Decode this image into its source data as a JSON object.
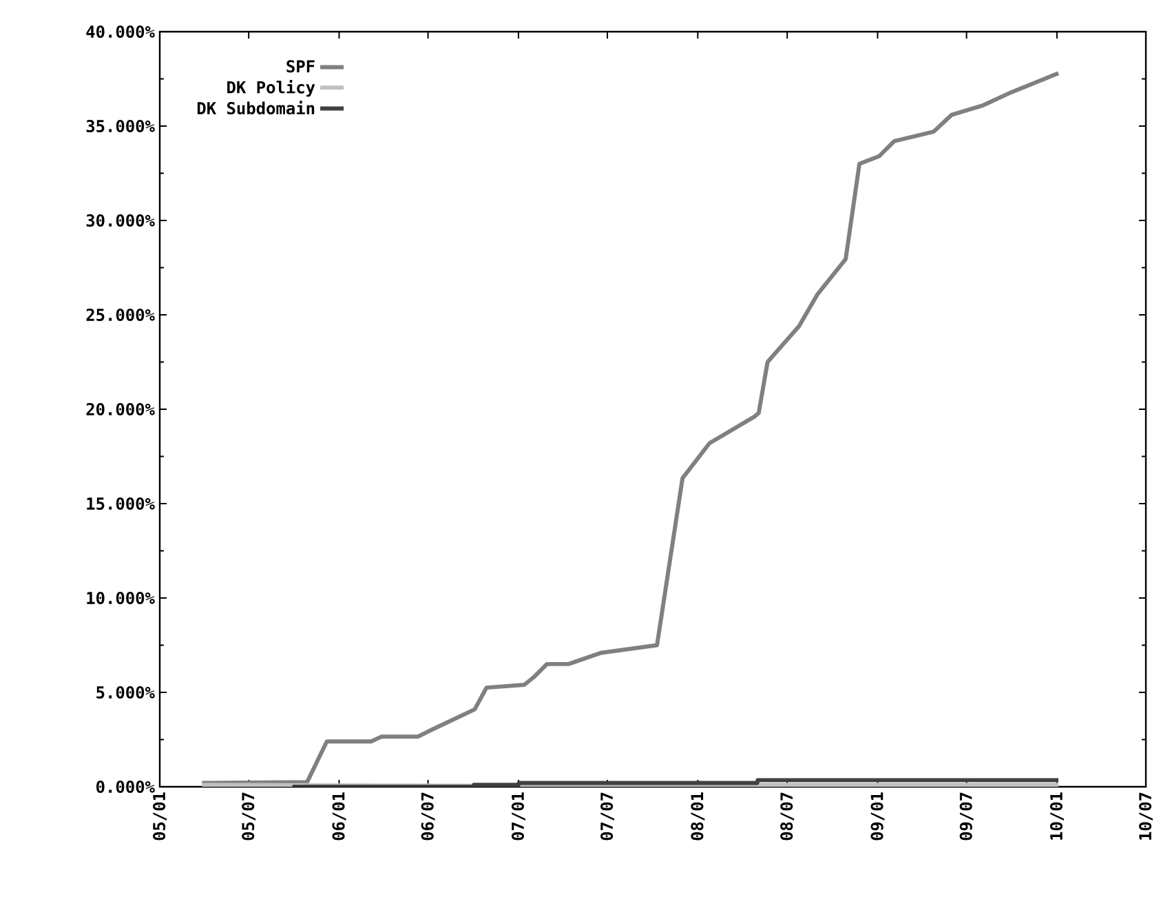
{
  "chart_data": {
    "type": "line",
    "series": [
      {
        "name": "SPF",
        "color": "#808080",
        "x": [
          "2005-03-28",
          "2005-10-28",
          "2005-12-07",
          "2006-03-07",
          "2006-03-28",
          "2006-06-10",
          "2006-07-07",
          "2006-10-04",
          "2006-10-28",
          "2007-01-13",
          "2007-02-01",
          "2007-02-28",
          "2007-04-13",
          "2007-06-19",
          "2007-10-10",
          "2007-12-01",
          "2008-01-25",
          "2008-04-25",
          "2008-05-04",
          "2008-05-22",
          "2008-07-25",
          "2008-09-01",
          "2008-10-28",
          "2008-11-25",
          "2009-01-04",
          "2009-02-04",
          "2009-04-25",
          "2009-06-01",
          "2009-08-04",
          "2009-10-01",
          "2010-01-04"
        ],
        "values": [
          0.2,
          0.25,
          2.4,
          2.4,
          2.65,
          2.65,
          3.0,
          4.1,
          5.25,
          5.4,
          5.8,
          6.5,
          6.5,
          7.1,
          7.5,
          16.35,
          18.2,
          19.6,
          19.8,
          22.5,
          24.4,
          26.1,
          27.95,
          33.0,
          33.4,
          34.2,
          34.7,
          35.6,
          36.1,
          36.8,
          37.8
        ]
      },
      {
        "name": "DK Policy",
        "color": "#c0c0c0",
        "x": [
          "2005-03-28",
          "2006-10-01",
          "2008-05-01",
          "2010-01-04"
        ],
        "values": [
          0.1,
          0.05,
          0.1,
          0.1
        ]
      },
      {
        "name": "DK Subdomain",
        "color": "#404040",
        "x": [
          "2005-09-28",
          "2006-10-01",
          "2006-10-02",
          "2007-01-01",
          "2007-01-02",
          "2008-05-01",
          "2008-05-02",
          "2010-01-04"
        ],
        "values": [
          0.0,
          0.0,
          0.1,
          0.1,
          0.2,
          0.2,
          0.35,
          0.35
        ]
      }
    ],
    "xlim": [
      "2005-01",
      "2010-07"
    ],
    "xticks": [
      {
        "value": "2005-01",
        "label": "05/01"
      },
      {
        "value": "2005-07",
        "label": "05/07"
      },
      {
        "value": "2006-01",
        "label": "06/01"
      },
      {
        "value": "2006-07",
        "label": "06/07"
      },
      {
        "value": "2007-01",
        "label": "07/01"
      },
      {
        "value": "2007-07",
        "label": "07/07"
      },
      {
        "value": "2008-01",
        "label": "08/01"
      },
      {
        "value": "2008-07",
        "label": "08/07"
      },
      {
        "value": "2009-01",
        "label": "09/01"
      },
      {
        "value": "2009-07",
        "label": "09/07"
      },
      {
        "value": "2010-01",
        "label": "10/01"
      },
      {
        "value": "2010-07",
        "label": "10/07"
      }
    ],
    "ylim": [
      0,
      40
    ],
    "yticks": [
      {
        "value": 0,
        "label": "0.000%"
      },
      {
        "value": 5,
        "label": "5.000%"
      },
      {
        "value": 10,
        "label": "10.000%"
      },
      {
        "value": 15,
        "label": "15.000%"
      },
      {
        "value": 20,
        "label": "20.000%"
      },
      {
        "value": 25,
        "label": "25.000%"
      },
      {
        "value": 30,
        "label": "30.000%"
      },
      {
        "value": 35,
        "label": "35.000%"
      },
      {
        "value": 40,
        "label": "40.000%"
      }
    ],
    "legend": "top left",
    "grid": false,
    "marker": "none",
    "line_style": "solid"
  }
}
